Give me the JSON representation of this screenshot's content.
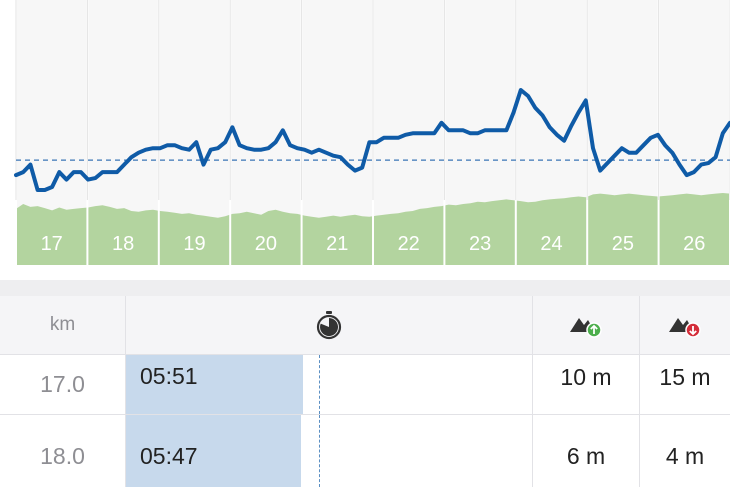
{
  "chart_data": {
    "type": "line",
    "x_labels": [
      "17",
      "18",
      "19",
      "20",
      "21",
      "22",
      "23",
      "24",
      "25",
      "26"
    ],
    "series": [
      {
        "values": [
          5.85,
          5.83,
          5.78,
          5.95,
          5.95,
          5.93,
          5.83,
          5.88,
          5.83,
          5.83,
          5.88,
          5.87,
          5.83,
          5.83,
          5.83,
          5.78,
          5.73,
          5.7,
          5.68,
          5.67,
          5.67,
          5.65,
          5.65,
          5.67,
          5.68,
          5.63,
          5.78,
          5.68,
          5.67,
          5.63,
          5.53,
          5.65,
          5.67,
          5.68,
          5.68,
          5.67,
          5.63,
          5.55,
          5.65,
          5.67,
          5.68,
          5.7,
          5.68,
          5.7,
          5.72,
          5.73,
          5.78,
          5.82,
          5.8,
          5.63,
          5.63,
          5.6,
          5.6,
          5.6,
          5.58,
          5.57,
          5.57,
          5.57,
          5.57,
          5.5,
          5.55,
          5.55,
          5.55,
          5.57,
          5.57,
          5.55,
          5.55,
          5.55,
          5.55,
          5.43,
          5.28,
          5.32,
          5.4,
          5.45,
          5.53,
          5.58,
          5.62,
          5.52,
          5.43,
          5.35,
          5.67,
          5.82,
          5.77,
          5.72,
          5.67,
          5.7,
          5.7,
          5.65,
          5.6,
          5.58,
          5.65,
          5.7,
          5.78,
          5.85,
          5.83,
          5.78,
          5.77,
          5.73,
          5.57,
          5.5
        ]
      }
    ],
    "y_reversed": true,
    "average_line": 5.75,
    "elevation": [
      0.45,
      0.62,
      0.52,
      0.55,
      0.48,
      0.4,
      0.5,
      0.42,
      0.45,
      0.48,
      0.5,
      0.55,
      0.58,
      0.52,
      0.45,
      0.48,
      0.38,
      0.35,
      0.4,
      0.42,
      0.38,
      0.35,
      0.32,
      0.28,
      0.3,
      0.25,
      0.22,
      0.18,
      0.15,
      0.2,
      0.28,
      0.3,
      0.35,
      0.3,
      0.25,
      0.38,
      0.42,
      0.35,
      0.3,
      0.28,
      0.22,
      0.18,
      0.15,
      0.18,
      0.22,
      0.18,
      0.22,
      0.25,
      0.2,
      0.18,
      0.22,
      0.25,
      0.28,
      0.3,
      0.35,
      0.38,
      0.45,
      0.48,
      0.52,
      0.55,
      0.6,
      0.58,
      0.62,
      0.65,
      0.7,
      0.68,
      0.72,
      0.75,
      0.78,
      0.75,
      0.72,
      0.68,
      0.7,
      0.75,
      0.78,
      0.8,
      0.82,
      0.85,
      0.88,
      0.85,
      0.95,
      0.98,
      0.95,
      0.92,
      0.95,
      0.98,
      0.95,
      0.92,
      0.9,
      0.88,
      0.9,
      0.92,
      0.95,
      0.98,
      0.95,
      0.92,
      0.95,
      0.98,
      1.0,
      0.98
    ],
    "grid": true,
    "colors": {
      "line": "#0f5ba7",
      "average": "#3a75b5",
      "elevation": "#b3d49f",
      "grid": "#e3e3e3",
      "background": "#f7f7f7"
    }
  },
  "table": {
    "header": {
      "km": "km",
      "pace_icon": "stopwatch-icon",
      "ascent_icon": "ascent-icon",
      "descent_icon": "descent-icon",
      "ascent_color": "#4cae4c",
      "descent_color": "#d42d3a"
    },
    "pace_bar_max": "06:00",
    "rows": [
      {
        "km": "17.0",
        "pace": "05:51",
        "ascent": "10 m",
        "descent": "15 m"
      },
      {
        "km": "18.0",
        "pace": "05:47",
        "ascent": "6 m",
        "descent": "4 m"
      }
    ]
  }
}
